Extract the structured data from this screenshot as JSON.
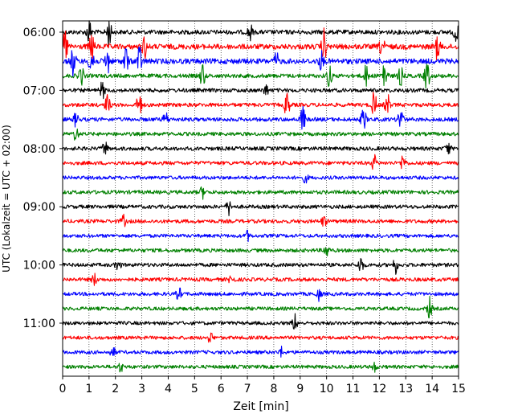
{
  "chart_data": {
    "type": "line",
    "xlabel": "Zeit  [min]",
    "ylabel": "UTC (Lokalzeit = UTC + 02:00)",
    "xlim": [
      0,
      15
    ],
    "xticks": [
      0,
      1,
      2,
      3,
      4,
      5,
      6,
      7,
      8,
      9,
      10,
      11,
      12,
      13,
      14,
      15
    ],
    "grid_x": true,
    "grid_style": "dotted",
    "yticks": [
      "06:00",
      "07:00",
      "08:00",
      "09:00",
      "10:00",
      "11:00"
    ],
    "traces": [
      {
        "start": "06:00",
        "color": "#000000",
        "amplitude": 0.55,
        "bursts": [
          [
            1.0,
            1.3
          ],
          [
            1.75,
            1.6
          ],
          [
            7.1,
            0.9
          ],
          [
            14.9,
            1.0
          ]
        ]
      },
      {
        "start": "06:15",
        "color": "#ff0000",
        "amplitude": 0.8,
        "bursts": [
          [
            0.1,
            1.8
          ],
          [
            1.1,
            1.5
          ],
          [
            3.1,
            1.2
          ],
          [
            9.9,
            1.7
          ],
          [
            12.1,
            1.1
          ],
          [
            14.2,
            1.3
          ]
        ]
      },
      {
        "start": "06:30",
        "color": "#0000ff",
        "amplitude": 0.8,
        "bursts": [
          [
            0.4,
            1.6
          ],
          [
            1.1,
            2.0
          ],
          [
            1.7,
            1.4
          ],
          [
            2.4,
            1.5
          ],
          [
            2.9,
            1.6
          ],
          [
            8.1,
            0.8
          ],
          [
            9.8,
            0.9
          ]
        ]
      },
      {
        "start": "06:45",
        "color": "#008000",
        "amplitude": 0.45,
        "bursts": [
          [
            0.7,
            1.1
          ],
          [
            5.3,
            1.3
          ],
          [
            10.1,
            1.2
          ],
          [
            11.5,
            1.1
          ],
          [
            12.2,
            1.9
          ],
          [
            12.8,
            1.0
          ],
          [
            13.8,
            1.8
          ]
        ]
      },
      {
        "start": "07:00",
        "color": "#000000",
        "amplitude": 0.4,
        "bursts": [
          [
            1.5,
            0.9
          ],
          [
            7.7,
            0.6
          ]
        ]
      },
      {
        "start": "07:15",
        "color": "#ff0000",
        "amplitude": 0.4,
        "bursts": [
          [
            1.7,
            1.1
          ],
          [
            2.9,
            1.5
          ],
          [
            8.5,
            1.5
          ],
          [
            11.8,
            1.4
          ],
          [
            12.3,
            1.2
          ]
        ]
      },
      {
        "start": "07:30",
        "color": "#0000ff",
        "amplitude": 0.4,
        "bursts": [
          [
            0.5,
            0.7
          ],
          [
            3.9,
            0.8
          ],
          [
            9.1,
            1.4
          ],
          [
            11.4,
            1.3
          ],
          [
            12.8,
            1.5
          ]
        ]
      },
      {
        "start": "07:45",
        "color": "#008000",
        "amplitude": 0.35,
        "bursts": [
          [
            0.5,
            0.7
          ]
        ]
      },
      {
        "start": "08:00",
        "color": "#000000",
        "amplitude": 0.4,
        "bursts": [
          [
            1.6,
            0.8
          ],
          [
            14.6,
            0.7
          ]
        ]
      },
      {
        "start": "08:15",
        "color": "#ff0000",
        "amplitude": 0.35,
        "bursts": [
          [
            11.8,
            0.8
          ],
          [
            12.9,
            0.9
          ]
        ]
      },
      {
        "start": "08:30",
        "color": "#0000ff",
        "amplitude": 0.3,
        "bursts": [
          [
            9.2,
            0.5
          ]
        ]
      },
      {
        "start": "08:45",
        "color": "#008000",
        "amplitude": 0.35,
        "bursts": [
          [
            5.3,
            0.6
          ]
        ]
      },
      {
        "start": "09:00",
        "color": "#000000",
        "amplitude": 0.35,
        "bursts": [
          [
            6.3,
            0.8
          ]
        ]
      },
      {
        "start": "09:15",
        "color": "#ff0000",
        "amplitude": 0.35,
        "bursts": [
          [
            2.3,
            0.6
          ],
          [
            9.9,
            0.6
          ]
        ]
      },
      {
        "start": "09:30",
        "color": "#0000ff",
        "amplitude": 0.3,
        "bursts": [
          [
            7.0,
            0.5
          ]
        ]
      },
      {
        "start": "09:45",
        "color": "#008000",
        "amplitude": 0.35,
        "bursts": [
          [
            10.0,
            0.7
          ]
        ]
      },
      {
        "start": "10:00",
        "color": "#000000",
        "amplitude": 0.35,
        "bursts": [
          [
            2.1,
            0.6
          ],
          [
            11.3,
            0.9
          ],
          [
            12.6,
            0.9
          ]
        ]
      },
      {
        "start": "10:15",
        "color": "#ff0000",
        "amplitude": 0.35,
        "bursts": [
          [
            1.2,
            0.6
          ],
          [
            6.4,
            0.6
          ]
        ]
      },
      {
        "start": "10:30",
        "color": "#0000ff",
        "amplitude": 0.3,
        "bursts": [
          [
            4.4,
            0.7
          ],
          [
            9.7,
            0.6
          ]
        ]
      },
      {
        "start": "10:45",
        "color": "#008000",
        "amplitude": 0.3,
        "bursts": [
          [
            13.9,
            1.1
          ]
        ]
      },
      {
        "start": "11:00",
        "color": "#000000",
        "amplitude": 0.3,
        "bursts": [
          [
            8.8,
            0.9
          ]
        ]
      },
      {
        "start": "11:15",
        "color": "#ff0000",
        "amplitude": 0.3,
        "bursts": [
          [
            5.6,
            0.6
          ]
        ]
      },
      {
        "start": "11:30",
        "color": "#0000ff",
        "amplitude": 0.3,
        "bursts": [
          [
            1.9,
            0.6
          ],
          [
            8.3,
            0.5
          ]
        ]
      },
      {
        "start": "11:45",
        "color": "#008000",
        "amplitude": 0.3,
        "bursts": [
          [
            2.2,
            0.5
          ],
          [
            11.8,
            0.5
          ]
        ]
      }
    ]
  }
}
